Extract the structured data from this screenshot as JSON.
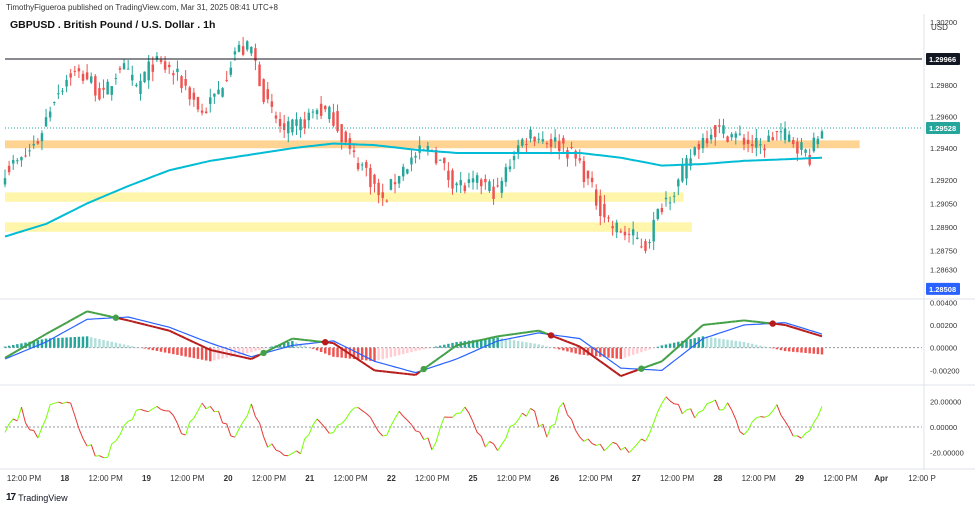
{
  "header": {
    "publisher": "TimothyFigueroa published on TradingView.com, Mar 31, 2025 08:41 UTC+8",
    "title": "GBPUSD . British Pound / U.S. Dollar . 1h",
    "currency": "USD"
  },
  "footer": {
    "brand": "TradingView",
    "logo": "17"
  },
  "colors": {
    "bull": "#26a69a",
    "bear": "#ef5350",
    "ma": "#00bcd4",
    "zone_orange": "#ffcc80",
    "zone_yellow": "#fff59d",
    "macd_green": "#43a047",
    "macd_blue": "#2962ff",
    "macd_red": "#b71c1c",
    "osc_green": "#76ff03",
    "osc_red": "#e53935"
  },
  "chart_data": [
    {
      "type": "candlestick",
      "title": "GBPUSD . British Pound / U.S. Dollar . 1h",
      "ylim": [
        1.2845,
        1.3015
      ],
      "yticks": [
        "1.30200",
        "1.29800",
        "1.29600",
        "1.29400",
        "1.29200",
        "1.29050",
        "1.28900",
        "1.28750",
        "1.28630"
      ],
      "ytick_values": [
        1.302,
        1.298,
        1.296,
        1.294,
        1.292,
        1.2905,
        1.289,
        1.2875,
        1.2863
      ],
      "price_tags": [
        {
          "label": "1.29966",
          "value": 1.29966,
          "style": "dark"
        },
        {
          "label": "1.29528",
          "value": 1.29528,
          "style": "teal"
        },
        {
          "label": "1.28508",
          "value": 1.28508,
          "style": "blue"
        }
      ],
      "horizontal_line": 1.29966,
      "zones": [
        {
          "color": "orange",
          "top": 1.2945,
          "bottom": 1.294,
          "x_end": 0.932
        },
        {
          "color": "yellow",
          "top": 1.2912,
          "bottom": 1.2906,
          "x_end": 0.74
        },
        {
          "color": "yellow",
          "top": 1.2893,
          "bottom": 1.2887,
          "x_end": 0.749
        }
      ],
      "series": [
        {
          "name": "",
          "type": "close",
          "x": [
            0,
            4,
            8,
            12,
            16,
            20,
            24,
            28,
            32,
            36,
            40,
            44,
            48,
            52,
            56,
            60,
            64,
            68,
            72,
            76,
            80,
            84,
            88,
            92,
            96,
            100,
            104,
            108,
            112,
            116,
            120,
            124,
            128,
            132,
            136,
            140,
            144,
            148,
            152,
            156,
            160,
            164,
            168,
            172,
            176,
            180,
            184,
            188,
            192,
            196,
            199
          ],
          "values": [
            1.2927,
            1.2932,
            1.2945,
            1.2973,
            1.2988,
            1.2985,
            1.2972,
            1.2993,
            1.2978,
            1.2994,
            1.299,
            1.2979,
            1.2962,
            1.2976,
            1.3002,
            1.3003,
            1.2966,
            1.295,
            1.2955,
            1.2965,
            1.296,
            1.2937,
            1.2926,
            1.2905,
            1.2925,
            1.2935,
            1.294,
            1.2922,
            1.2915,
            1.2918,
            1.2912,
            1.2938,
            1.295,
            1.2945,
            1.2942,
            1.293,
            1.2907,
            1.289,
            1.2885,
            1.2878,
            1.2905,
            1.2918,
            1.294,
            1.2952,
            1.295,
            1.2945,
            1.294,
            1.295,
            1.2945,
            1.2935,
            1.2953
          ]
        },
        {
          "name": "",
          "type": "ma",
          "x": [
            0,
            10,
            20,
            30,
            40,
            50,
            60,
            70,
            80,
            90,
            100,
            110,
            120,
            130,
            140,
            150,
            160,
            170,
            180,
            190,
            199
          ],
          "values": [
            1.2884,
            1.2892,
            1.2905,
            1.2916,
            1.2926,
            1.2932,
            1.2936,
            1.294,
            1.2943,
            1.2942,
            1.2939,
            1.2937,
            1.2937,
            1.2937,
            1.2937,
            1.2934,
            1.2929,
            1.293,
            1.2932,
            1.2933,
            1.2934
          ]
        }
      ]
    },
    {
      "type": "bar",
      "yticks": [
        "0.00400",
        "0.00200",
        "0.00000",
        "-0.00200"
      ],
      "ytick_values": [
        0.004,
        0.002,
        0.0,
        -0.002
      ],
      "ylim": [
        -0.0032,
        0.0042
      ],
      "series": [
        {
          "name": "",
          "type": "histogram",
          "x": [
            0,
            10,
            20,
            30,
            40,
            50,
            60,
            70,
            80,
            90,
            100,
            110,
            120,
            130,
            140,
            150,
            160,
            170,
            180,
            190,
            199
          ],
          "values": [
            0.0001,
            0.0008,
            0.001,
            0.0002,
            -0.0005,
            -0.0012,
            -0.0004,
            0.0006,
            -0.0008,
            -0.0012,
            -0.0003,
            0.0005,
            0.0009,
            0.0003,
            -0.0006,
            -0.001,
            0.0002,
            0.001,
            0.0005,
            -0.0003,
            -0.0006
          ]
        },
        {
          "name": "",
          "type": "line",
          "x": [
            0,
            10,
            20,
            30,
            40,
            50,
            60,
            70,
            80,
            90,
            100,
            110,
            120,
            130,
            140,
            150,
            160,
            170,
            180,
            190,
            199
          ],
          "values": [
            -0.0009,
            0.0012,
            0.0032,
            0.0024,
            0.0015,
            -0.0002,
            -0.001,
            0.0008,
            0.0004,
            -0.002,
            -0.0024,
            0.0002,
            0.001,
            0.0015,
            0.0001,
            -0.0025,
            -0.0012,
            0.002,
            0.0024,
            0.002,
            0.001
          ]
        },
        {
          "name": "",
          "type": "line",
          "x": [
            0,
            10,
            20,
            30,
            40,
            50,
            60,
            70,
            80,
            90,
            100,
            110,
            120,
            130,
            140,
            150,
            160,
            170,
            180,
            190,
            199
          ],
          "values": [
            -0.001,
            0.0005,
            0.0025,
            0.0027,
            0.0018,
            0.0004,
            -0.0008,
            0.0002,
            0.0006,
            -0.0012,
            -0.0022,
            -0.001,
            0.0006,
            0.0013,
            0.0008,
            -0.0018,
            -0.002,
            0.0008,
            0.002,
            0.0022,
            0.0012
          ]
        }
      ]
    },
    {
      "type": "line",
      "yticks": [
        "20.00000",
        "0.00000",
        "-20.00000"
      ],
      "ytick_values": [
        20,
        0,
        -20
      ],
      "ylim": [
        -32,
        32
      ],
      "series": [
        {
          "name": "",
          "x": [
            0,
            4,
            8,
            12,
            16,
            20,
            24,
            28,
            32,
            36,
            40,
            44,
            48,
            52,
            56,
            60,
            64,
            68,
            72,
            76,
            80,
            84,
            88,
            92,
            96,
            100,
            104,
            108,
            112,
            116,
            120,
            124,
            128,
            132,
            136,
            140,
            144,
            148,
            152,
            156,
            160,
            164,
            168,
            172,
            176,
            180,
            184,
            188,
            192,
            196,
            199
          ],
          "values": [
            -2,
            12,
            -10,
            22,
            20,
            -15,
            -25,
            -8,
            14,
            15,
            10,
            -5,
            16,
            12,
            -8,
            18,
            -12,
            -25,
            -20,
            10,
            -5,
            15,
            8,
            -8,
            12,
            -3,
            -14,
            10,
            16,
            -10,
            -18,
            5,
            14,
            -6,
            18,
            -8,
            -18,
            -12,
            -18,
            -10,
            22,
            15,
            10,
            18,
            16,
            -6,
            10,
            14,
            -10,
            -5,
            15
          ]
        }
      ]
    }
  ],
  "xaxis": {
    "labels": [
      "12:00 PM",
      "18",
      "12:00 PM",
      "19",
      "12:00 PM",
      "20",
      "12:00 PM",
      "21",
      "12:00 PM",
      "22",
      "12:00 PM",
      "25",
      "12:00 PM",
      "26",
      "12:00 PM",
      "27",
      "12:00 PM",
      "28",
      "12:00 PM",
      "29",
      "12:00 PM",
      "Apr",
      "12:00 P"
    ],
    "bold": [
      "18",
      "19",
      "20",
      "21",
      "22",
      "25",
      "26",
      "27",
      "28",
      "29",
      "Apr"
    ]
  }
}
